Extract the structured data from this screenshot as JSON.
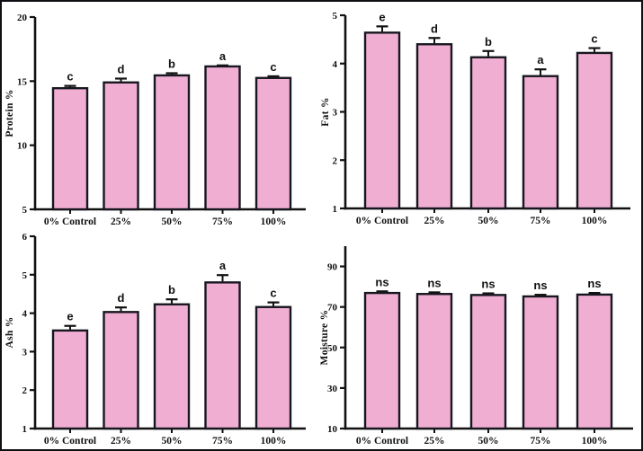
{
  "figure": {
    "background": "#ffffff",
    "frame_color": "#101014",
    "bar_fill": "#F0AED3",
    "bar_border": "#17171F",
    "axis_color": "#111111"
  },
  "chart_data": [
    {
      "id": "protein",
      "type": "bar",
      "ylabel": "Protein %",
      "categories": [
        "0% Control",
        "25%",
        "50%",
        "75%",
        "100%"
      ],
      "values": [
        14.45,
        14.9,
        15.45,
        16.15,
        15.25
      ],
      "errors": [
        0.18,
        0.3,
        0.17,
        0.08,
        0.13
      ],
      "letters": [
        "c",
        "d",
        "b",
        "a",
        "c"
      ],
      "ylim": [
        5,
        20
      ],
      "yticks": [
        5,
        10,
        15,
        20
      ],
      "grid": false,
      "legend": false,
      "bar_color": "#F0AED3",
      "bar_border": "#17171F"
    },
    {
      "id": "fat",
      "type": "bar",
      "ylabel": "Fat %",
      "categories": [
        "0% Control",
        "25%",
        "50%",
        "75%",
        "100%"
      ],
      "values": [
        4.64,
        4.4,
        4.13,
        3.74,
        4.22
      ],
      "errors": [
        0.13,
        0.13,
        0.13,
        0.14,
        0.1
      ],
      "letters": [
        "e",
        "d",
        "b",
        "a",
        "c"
      ],
      "ylim": [
        1,
        5
      ],
      "yticks": [
        1,
        2,
        3,
        4,
        5
      ],
      "grid": false,
      "legend": false,
      "bar_color": "#F0AED3",
      "bar_border": "#17171F"
    },
    {
      "id": "ash",
      "type": "bar",
      "ylabel": "Ash %",
      "categories": [
        "0% Control",
        "25%",
        "50%",
        "75%",
        "100%"
      ],
      "values": [
        3.55,
        4.03,
        4.23,
        4.8,
        4.16
      ],
      "errors": [
        0.12,
        0.12,
        0.13,
        0.19,
        0.12
      ],
      "letters": [
        "e",
        "d",
        "b",
        "a",
        "c"
      ],
      "ylim": [
        1,
        6
      ],
      "yticks": [
        1,
        2,
        3,
        4,
        5,
        6
      ],
      "grid": false,
      "legend": false,
      "bar_color": "#F0AED3",
      "bar_border": "#17171F"
    },
    {
      "id": "moisture",
      "type": "bar",
      "ylabel": "Moisture %",
      "categories": [
        "0% Control",
        "25%",
        "50%",
        "75%",
        "100%"
      ],
      "values": [
        76.9,
        76.4,
        75.9,
        75.2,
        76.1
      ],
      "errors": [
        0.8,
        0.8,
        0.8,
        0.8,
        0.8
      ],
      "letters": [
        "ns",
        "ns",
        "ns",
        "ns",
        "ns"
      ],
      "ylim": [
        10,
        100
      ],
      "yticks": [
        10,
        30,
        50,
        70,
        90
      ],
      "grid": false,
      "legend": false,
      "bar_color": "#F0AED3",
      "bar_border": "#17171F"
    }
  ]
}
